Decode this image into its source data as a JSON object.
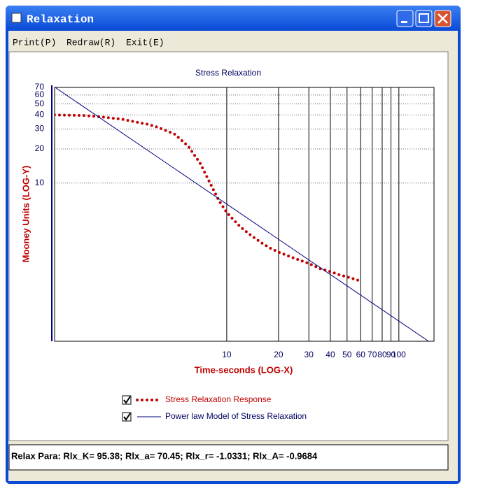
{
  "window": {
    "title": "Relaxation"
  },
  "menu": [
    "Print(P)",
    "Redraw(R)",
    "Exit(E)"
  ],
  "chart_data": {
    "type": "line",
    "title": "Stress Relaxation",
    "x_label": "Time-seconds (LOG-X)",
    "y_label": "Mooney Units (LOG-Y)",
    "log_x": true,
    "log_y": true,
    "grid": true,
    "xlim": [
      1,
      160
    ],
    "ylim": [
      0.4,
      70
    ],
    "xticks": [
      10,
      20,
      30,
      40,
      50,
      60,
      70,
      80,
      90,
      100
    ],
    "yticks": [
      10,
      20,
      30,
      40,
      50,
      60,
      70
    ],
    "series": [
      {
        "name": "Stress Relaxation Response",
        "color": "#c00000",
        "style": "dotted",
        "x": [
          1,
          1.5,
          2,
          2.5,
          3,
          3.5,
          4,
          5,
          6,
          7,
          8,
          9,
          10,
          11,
          12,
          14,
          16,
          18,
          20,
          25,
          30,
          35,
          40,
          45,
          50,
          55,
          60
        ],
        "values": [
          40,
          39.5,
          38,
          36.5,
          34.5,
          33,
          31,
          27,
          21,
          15,
          10,
          7,
          5.5,
          4.7,
          4.1,
          3.4,
          2.95,
          2.65,
          2.45,
          2.15,
          1.95,
          1.75,
          1.65,
          1.55,
          1.48,
          1.42,
          1.36
        ]
      },
      {
        "name": "Power law Model of Stress Relaxation",
        "color": "#000080",
        "style": "solid",
        "x": [
          1,
          160
        ],
        "values": [
          70.45,
          0.371
        ]
      }
    ]
  },
  "status": "Relax Para: Rlx_K= 95.38; Rlx_a= 70.45; Rlx_r= -1.0331; Rlx_A= -0.9684"
}
